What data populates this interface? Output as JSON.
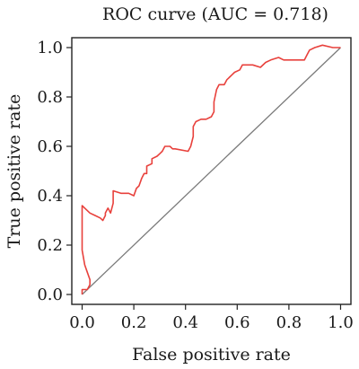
{
  "chart_data": {
    "type": "line",
    "title": "ROC curve (AUC = 0.718)",
    "xlabel": "False positive rate",
    "ylabel": "True positive rate",
    "xlim": [
      -0.04,
      1.04
    ],
    "ylim": [
      -0.04,
      1.04
    ],
    "xticks": [
      0.0,
      0.2,
      0.4,
      0.6,
      0.8,
      1.0
    ],
    "xtick_labels": [
      "0.0",
      "0.2",
      "0.4",
      "0.6",
      "0.8",
      "1.0"
    ],
    "yticks": [
      0.0,
      0.2,
      0.4,
      0.6,
      0.8,
      1.0
    ],
    "ytick_labels": [
      "0.0",
      "0.2",
      "0.4",
      "0.6",
      "0.8",
      "1.0"
    ],
    "grid": false,
    "legend": "none",
    "diagonal": {
      "points": [
        [
          0,
          0
        ],
        [
          1,
          1
        ]
      ],
      "color": "#7a7a7a"
    },
    "series": [
      {
        "color": "#e8413c",
        "points": [
          [
            0.0,
            0.0
          ],
          [
            0.0,
            0.02
          ],
          [
            0.02,
            0.02
          ],
          [
            0.03,
            0.04
          ],
          [
            0.03,
            0.06
          ],
          [
            0.02,
            0.09
          ],
          [
            0.01,
            0.12
          ],
          [
            0.0,
            0.18
          ],
          [
            0.0,
            0.36
          ],
          [
            0.01,
            0.35
          ],
          [
            0.03,
            0.33
          ],
          [
            0.05,
            0.32
          ],
          [
            0.07,
            0.31
          ],
          [
            0.08,
            0.3
          ],
          [
            0.09,
            0.32
          ],
          [
            0.09,
            0.33
          ],
          [
            0.1,
            0.35
          ],
          [
            0.11,
            0.33
          ],
          [
            0.12,
            0.37
          ],
          [
            0.12,
            0.42
          ],
          [
            0.15,
            0.41
          ],
          [
            0.18,
            0.41
          ],
          [
            0.2,
            0.4
          ],
          [
            0.21,
            0.43
          ],
          [
            0.22,
            0.44
          ],
          [
            0.23,
            0.47
          ],
          [
            0.24,
            0.49
          ],
          [
            0.25,
            0.49
          ],
          [
            0.25,
            0.52
          ],
          [
            0.27,
            0.53
          ],
          [
            0.27,
            0.55
          ],
          [
            0.29,
            0.56
          ],
          [
            0.3,
            0.57
          ],
          [
            0.31,
            0.58
          ],
          [
            0.32,
            0.6
          ],
          [
            0.34,
            0.6
          ],
          [
            0.35,
            0.59
          ],
          [
            0.36,
            0.59
          ],
          [
            0.41,
            0.58
          ],
          [
            0.42,
            0.6
          ],
          [
            0.43,
            0.64
          ],
          [
            0.43,
            0.68
          ],
          [
            0.44,
            0.7
          ],
          [
            0.46,
            0.71
          ],
          [
            0.48,
            0.71
          ],
          [
            0.5,
            0.72
          ],
          [
            0.51,
            0.74
          ],
          [
            0.51,
            0.78
          ],
          [
            0.52,
            0.83
          ],
          [
            0.53,
            0.85
          ],
          [
            0.55,
            0.85
          ],
          [
            0.56,
            0.87
          ],
          [
            0.57,
            0.88
          ],
          [
            0.58,
            0.89
          ],
          [
            0.59,
            0.9
          ],
          [
            0.61,
            0.91
          ],
          [
            0.62,
            0.93
          ],
          [
            0.63,
            0.93
          ],
          [
            0.66,
            0.93
          ],
          [
            0.69,
            0.92
          ],
          [
            0.71,
            0.94
          ],
          [
            0.73,
            0.95
          ],
          [
            0.76,
            0.96
          ],
          [
            0.78,
            0.95
          ],
          [
            0.81,
            0.95
          ],
          [
            0.84,
            0.95
          ],
          [
            0.86,
            0.95
          ],
          [
            0.87,
            0.97
          ],
          [
            0.88,
            0.99
          ],
          [
            0.9,
            1.0
          ],
          [
            0.93,
            1.01
          ],
          [
            0.97,
            1.0
          ],
          [
            0.99,
            1.0
          ],
          [
            1.0,
            1.0
          ]
        ]
      }
    ]
  }
}
